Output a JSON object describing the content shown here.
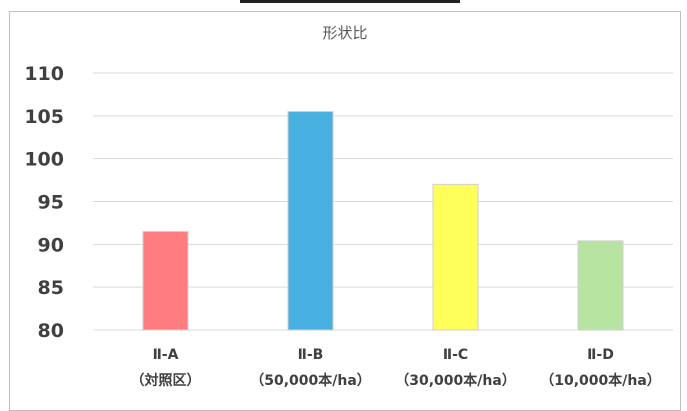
{
  "chart_data": {
    "type": "bar",
    "title": "形状比",
    "categories": [
      {
        "line1": "Ⅱ-A",
        "line2": "（対照区）"
      },
      {
        "line1": "Ⅱ-B",
        "line2": "（50,000本/ha）"
      },
      {
        "line1": "Ⅱ-C",
        "line2": "（30,000本/ha）"
      },
      {
        "line1": "Ⅱ-D",
        "line2": "（10,000本/ha）"
      }
    ],
    "values": [
      91.5,
      105.5,
      97.0,
      90.4
    ],
    "colors": [
      "#ff7c80",
      "#47b0e0",
      "#ffff5a",
      "#b7e4a0"
    ],
    "ylim": [
      80,
      110
    ],
    "yticks": [
      80,
      85,
      90,
      95,
      100,
      105,
      110
    ],
    "grid": true,
    "legend": "none",
    "xlabel": "",
    "ylabel": ""
  }
}
